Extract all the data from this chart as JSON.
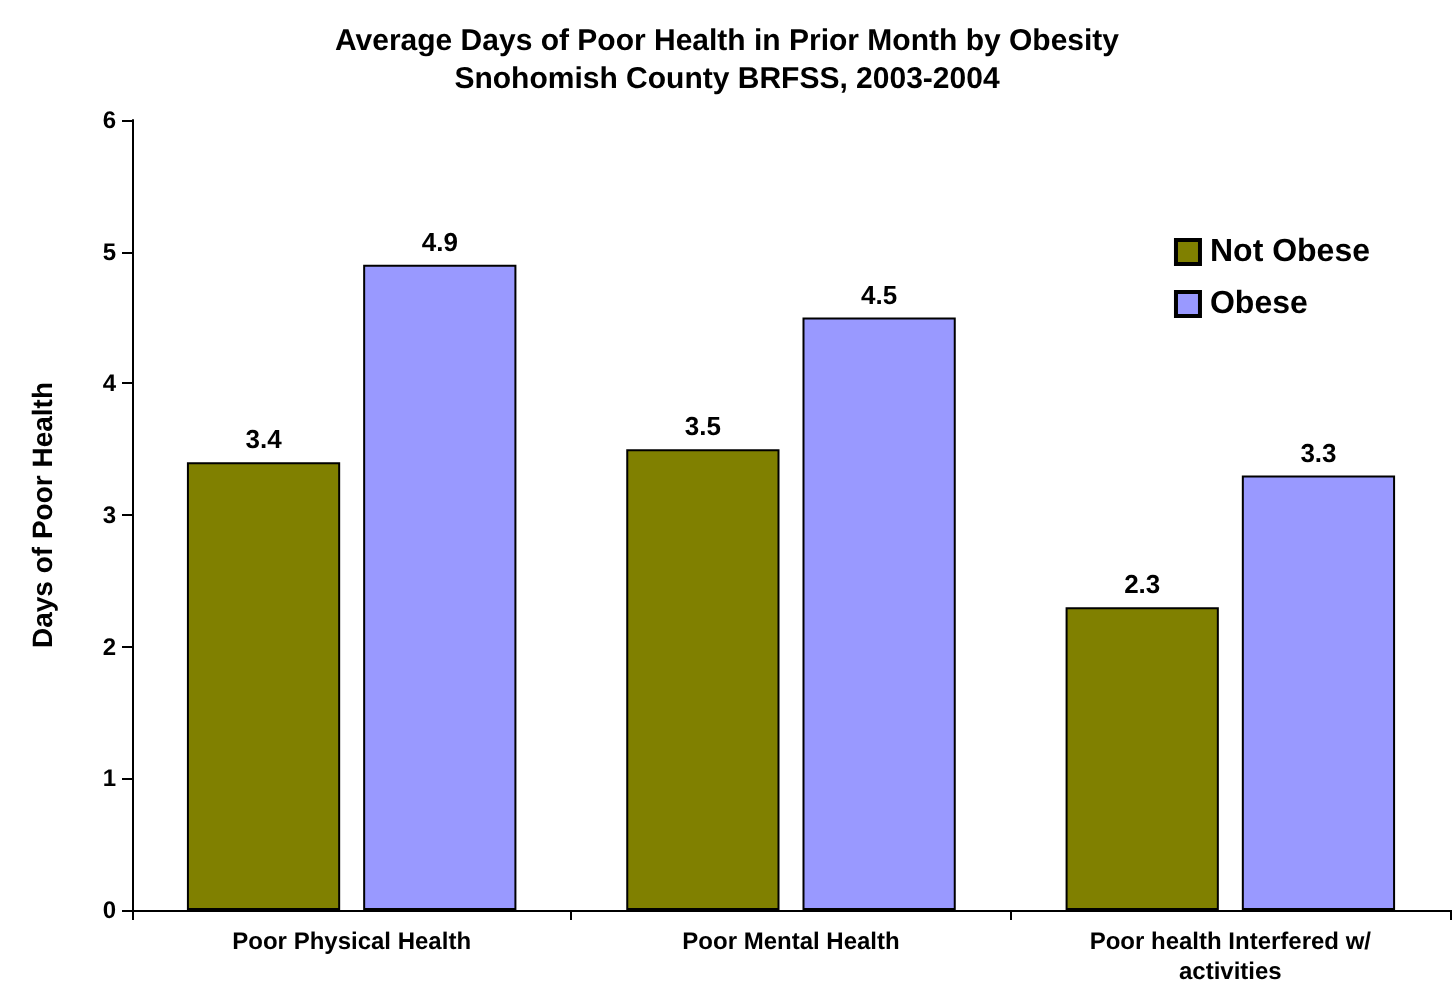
{
  "chart_data": {
    "type": "bar",
    "title": "Average Days of Poor Health in Prior Month by Obesity",
    "subtitle": "Snohomish County BRFSS, 2003-2004",
    "ylabel": "Days of Poor Health",
    "categories": [
      "Poor Physical Health",
      "Poor Mental Health",
      "Poor health Interfered w/activities"
    ],
    "series": [
      {
        "name": "Not Obese",
        "color": "#808000",
        "values": [
          3.4,
          3.5,
          2.3
        ]
      },
      {
        "name": "Obese",
        "color": "#9999ff",
        "values": [
          4.9,
          4.5,
          3.3
        ]
      }
    ],
    "ylim": [
      0,
      6
    ],
    "yticks": [
      0,
      1,
      2,
      3,
      4,
      5,
      6
    ],
    "grid": false,
    "legend": "top right",
    "data_labels": true
  }
}
